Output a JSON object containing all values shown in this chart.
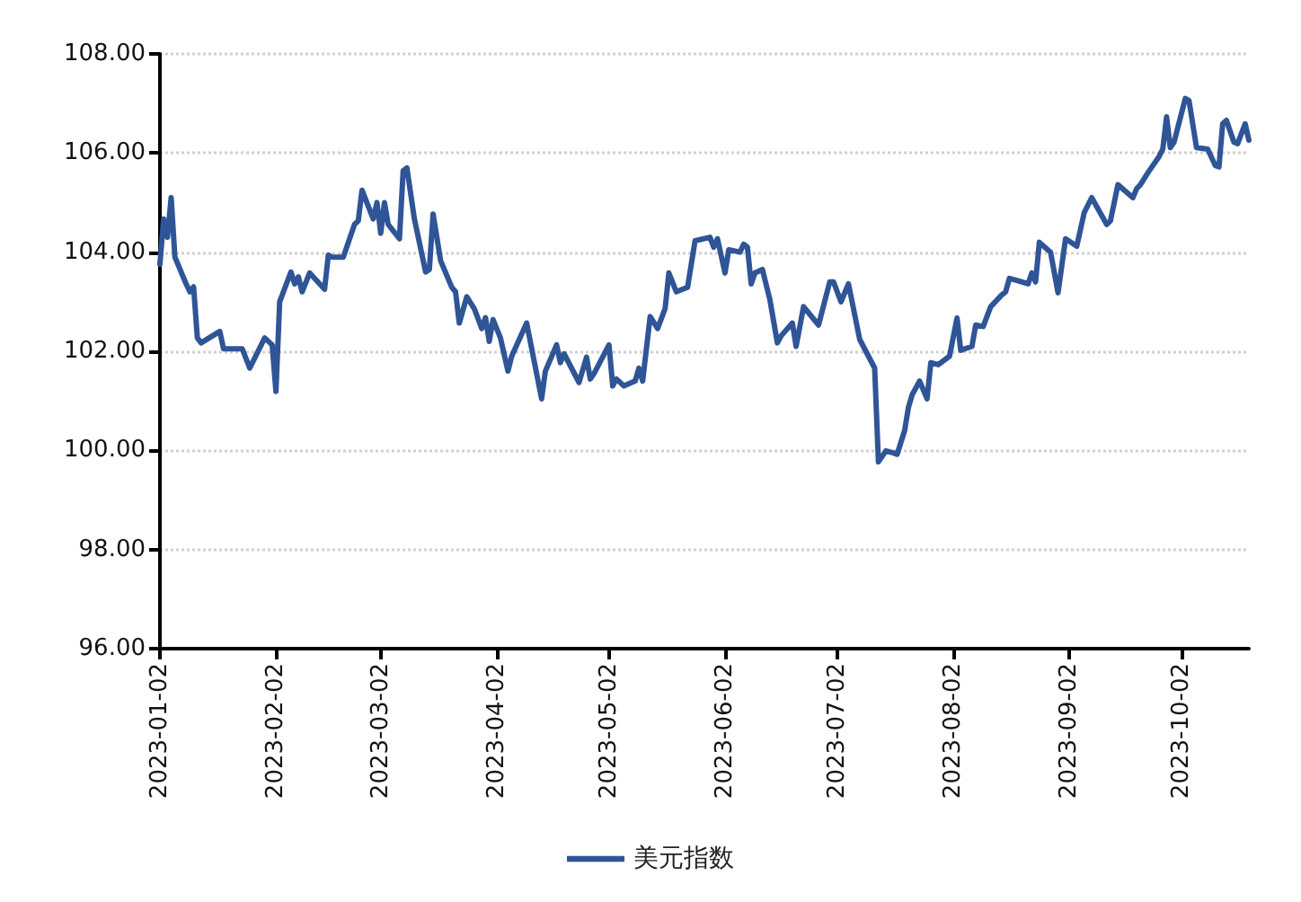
{
  "chart_data": {
    "type": "line",
    "x": [
      "2023-01-02",
      "2023-01-03",
      "2023-01-04",
      "2023-01-05",
      "2023-01-06",
      "2023-01-09",
      "2023-01-10",
      "2023-01-11",
      "2023-01-12",
      "2023-01-13",
      "2023-01-18",
      "2023-01-19",
      "2023-01-24",
      "2023-01-26",
      "2023-01-30",
      "2023-02-01",
      "2023-02-02",
      "2023-02-03",
      "2023-02-06",
      "2023-02-07",
      "2023-02-08",
      "2023-02-09",
      "2023-02-11",
      "2023-02-15",
      "2023-02-16",
      "2023-02-17",
      "2023-02-20",
      "2023-02-23",
      "2023-02-24",
      "2023-02-25",
      "2023-02-28",
      "2023-03-01",
      "2023-03-02",
      "2023-03-03",
      "2023-03-04",
      "2023-03-07",
      "2023-03-08",
      "2023-03-09",
      "2023-03-11",
      "2023-03-14",
      "2023-03-15",
      "2023-03-16",
      "2023-03-18",
      "2023-03-21",
      "2023-03-22",
      "2023-03-23",
      "2023-03-25",
      "2023-03-27",
      "2023-03-29",
      "2023-03-30",
      "2023-03-31",
      "2023-04-01",
      "2023-04-03",
      "2023-04-05",
      "2023-04-06",
      "2023-04-10",
      "2023-04-14",
      "2023-04-15",
      "2023-04-18",
      "2023-04-19",
      "2023-04-20",
      "2023-04-24",
      "2023-04-26",
      "2023-04-27",
      "2023-04-28",
      "2023-05-02",
      "2023-05-03",
      "2023-05-04",
      "2023-05-06",
      "2023-05-09",
      "2023-05-10",
      "2023-05-11",
      "2023-05-13",
      "2023-05-15",
      "2023-05-17",
      "2023-05-18",
      "2023-05-20",
      "2023-05-23",
      "2023-05-25",
      "2023-05-29",
      "2023-05-30",
      "2023-05-31",
      "2023-06-02",
      "2023-06-03",
      "2023-06-06",
      "2023-06-07",
      "2023-06-08",
      "2023-06-09",
      "2023-06-10",
      "2023-06-12",
      "2023-06-14",
      "2023-06-16",
      "2023-06-17",
      "2023-06-20",
      "2023-06-21",
      "2023-06-23",
      "2023-06-27",
      "2023-06-30",
      "2023-07-01",
      "2023-07-03",
      "2023-07-05",
      "2023-07-08",
      "2023-07-10",
      "2023-07-12",
      "2023-07-13",
      "2023-07-15",
      "2023-07-17",
      "2023-07-18",
      "2023-07-20",
      "2023-07-21",
      "2023-07-22",
      "2023-07-24",
      "2023-07-26",
      "2023-07-27",
      "2023-07-29",
      "2023-08-01",
      "2023-08-03",
      "2023-08-04",
      "2023-08-07",
      "2023-08-08",
      "2023-08-10",
      "2023-08-12",
      "2023-08-15",
      "2023-08-16",
      "2023-08-17",
      "2023-08-19",
      "2023-08-22",
      "2023-08-23",
      "2023-08-24",
      "2023-08-25",
      "2023-08-28",
      "2023-08-30",
      "2023-09-01",
      "2023-09-04",
      "2023-09-06",
      "2023-09-08",
      "2023-09-12",
      "2023-09-13",
      "2023-09-15",
      "2023-09-19",
      "2023-09-20",
      "2023-09-21",
      "2023-09-23",
      "2023-09-26",
      "2023-09-27",
      "2023-09-28",
      "2023-09-29",
      "2023-09-30",
      "2023-10-03",
      "2023-10-04",
      "2023-10-06",
      "2023-10-09",
      "2023-10-11",
      "2023-10-12",
      "2023-10-13",
      "2023-10-14",
      "2023-10-16",
      "2023-10-17",
      "2023-10-19",
      "2023-10-20"
    ],
    "series": [
      {
        "name": "美元指数",
        "color": "#2f5597",
        "values": [
          103.76,
          104.67,
          104.3,
          105.1,
          103.9,
          103.36,
          103.2,
          103.3,
          102.27,
          102.17,
          102.4,
          102.05,
          102.05,
          101.66,
          102.27,
          102.13,
          101.19,
          103.0,
          103.6,
          103.36,
          103.5,
          103.2,
          103.58,
          103.25,
          103.94,
          103.9,
          103.9,
          104.56,
          104.63,
          105.25,
          104.67,
          105.0,
          104.38,
          105.0,
          104.56,
          104.27,
          105.64,
          105.7,
          104.67,
          103.6,
          103.65,
          104.77,
          103.83,
          103.29,
          103.2,
          102.57,
          103.1,
          102.86,
          102.46,
          102.68,
          102.2,
          102.64,
          102.27,
          101.6,
          101.9,
          102.57,
          101.04,
          101.6,
          102.13,
          101.77,
          101.95,
          101.37,
          101.88,
          101.44,
          101.55,
          102.13,
          101.3,
          101.44,
          101.3,
          101.4,
          101.66,
          101.4,
          102.7,
          102.46,
          102.86,
          103.58,
          103.2,
          103.29,
          104.23,
          104.3,
          104.1,
          104.27,
          103.58,
          104.05,
          104.0,
          104.16,
          104.1,
          103.36,
          103.58,
          103.65,
          103.04,
          102.17,
          102.31,
          102.57,
          102.1,
          102.9,
          102.53,
          103.4,
          103.4,
          103.0,
          103.36,
          102.24,
          101.95,
          101.66,
          99.77,
          99.99,
          99.95,
          99.92,
          100.4,
          100.86,
          101.12,
          101.4,
          101.04,
          101.77,
          101.73,
          101.9,
          102.67,
          102.02,
          102.1,
          102.53,
          102.5,
          102.9,
          103.14,
          103.2,
          103.47,
          103.43,
          103.36,
          103.58,
          103.4,
          104.2,
          104.0,
          103.18,
          104.27,
          104.12,
          104.8,
          105.1,
          104.56,
          104.63,
          105.36,
          105.1,
          105.28,
          105.36,
          105.6,
          105.93,
          106.08,
          106.73,
          106.11,
          106.22,
          107.1,
          107.06,
          106.11,
          106.08,
          105.75,
          105.72,
          106.59,
          106.66,
          106.22,
          106.19,
          106.59,
          106.26
        ]
      }
    ],
    "xlim": [
      "2023-01-02",
      "2023-10-20"
    ],
    "xticks": [
      "2023-01-02",
      "2023-02-02",
      "2023-03-02",
      "2023-04-02",
      "2023-05-02",
      "2023-06-02",
      "2023-07-02",
      "2023-08-02",
      "2023-09-02",
      "2023-10-02"
    ],
    "ylim": [
      96,
      108
    ],
    "yticks": [
      {
        "value": 96,
        "label": "96.00"
      },
      {
        "value": 98,
        "label": "98.00"
      },
      {
        "value": 100,
        "label": "100.00"
      },
      {
        "value": 102,
        "label": "102.00"
      },
      {
        "value": 104,
        "label": "104.00"
      },
      {
        "value": 106,
        "label": "106.00"
      },
      {
        "value": 108,
        "label": "108.00"
      }
    ],
    "grid": "y",
    "legend": "bottom",
    "marker": "none",
    "line_style": "solid"
  }
}
